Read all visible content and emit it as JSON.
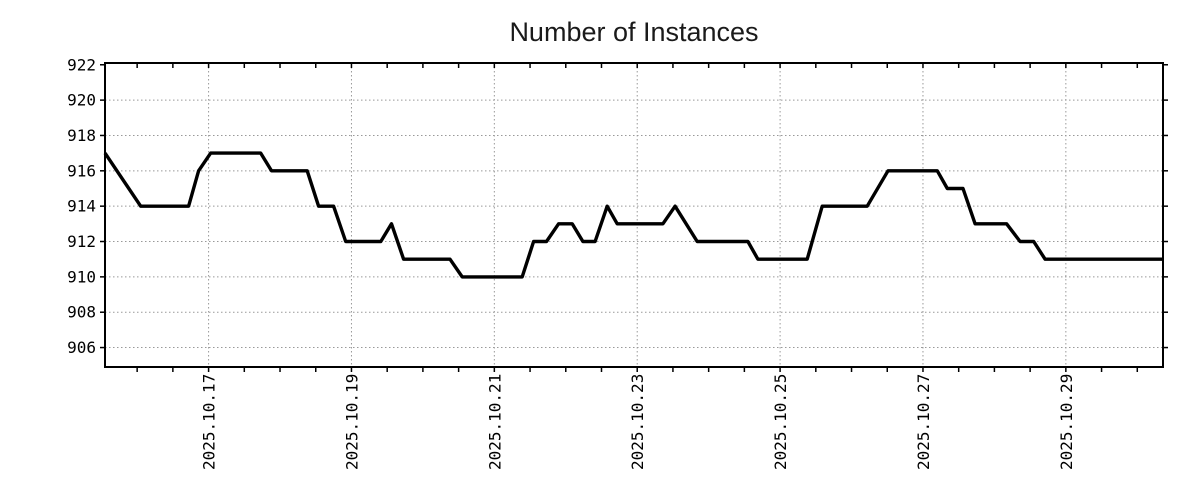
{
  "chart_data": {
    "type": "line",
    "title": "Number of Instances",
    "xlabel": "",
    "ylabel": "",
    "grid": true,
    "legend": "none",
    "x_tick_labels": [
      "2025.10.17",
      "2025.10.19",
      "2025.10.21",
      "2025.10.23",
      "2025.10.25",
      "2025.10.27",
      "2025.10.29"
    ],
    "x_tick_values": [
      17,
      19,
      21,
      23,
      25,
      27,
      29
    ],
    "x_minor_tick_step": 0.5,
    "y_ticks": [
      906,
      908,
      910,
      912,
      914,
      916,
      918,
      920,
      922
    ],
    "y_tick_labels": [
      "906",
      "908",
      "910",
      "912",
      "914",
      "916",
      "918",
      "920",
      "922"
    ],
    "xlim": [
      15.55,
      30.36
    ],
    "ylim": [
      904.9,
      922.1
    ],
    "x_axis_note": "x values are decimal day-of-month, October 2025",
    "series": [
      {
        "name": "instances",
        "x": [
          15.55,
          16.05,
          16.72,
          16.86,
          17.03,
          17.73,
          17.88,
          18.38,
          18.54,
          18.75,
          18.92,
          19.41,
          19.56,
          19.73,
          20.38,
          20.55,
          21.39,
          21.55,
          21.73,
          21.9,
          22.09,
          22.24,
          22.41,
          22.58,
          22.72,
          23.36,
          23.53,
          23.84,
          24.55,
          24.69,
          25.38,
          25.59,
          26.22,
          26.51,
          27.2,
          27.34,
          27.56,
          27.73,
          28.17,
          28.36,
          28.55,
          28.71,
          30.36
        ],
        "y": [
          917,
          914,
          914,
          916,
          917,
          917,
          916,
          916,
          914,
          914,
          912,
          912,
          913,
          911,
          911,
          910,
          910,
          912,
          912,
          913,
          913,
          912,
          912,
          914,
          913,
          913,
          914,
          912,
          912,
          911,
          911,
          914,
          914,
          916,
          916,
          915,
          915,
          913,
          913,
          912,
          912,
          911,
          911
        ]
      }
    ],
    "colors": {
      "line": "#000000",
      "grid": "#999999",
      "axis": "#000000",
      "text": "#000000",
      "title": "#1a1a1a",
      "background": "#ffffff"
    }
  }
}
